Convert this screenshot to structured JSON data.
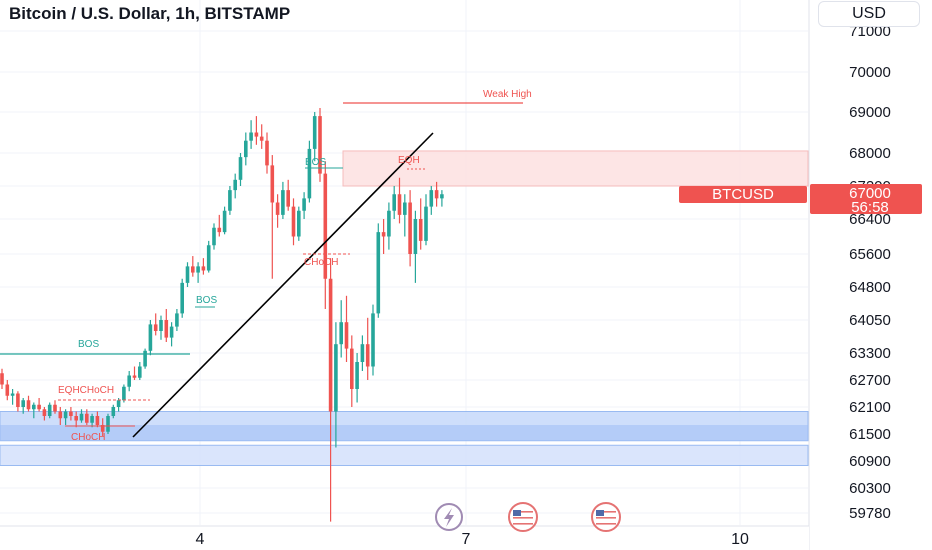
{
  "title": "Bitcoin / U.S. Dollar, 1h, BITSTAMP",
  "currency_button": "USD",
  "price_label": {
    "symbol": "BTCUSD",
    "price": "67000",
    "countdown": "56:58"
  },
  "colors": {
    "up": "#26a69a",
    "down": "#ef5350",
    "supply_zone": "#f9caca",
    "demand_zone": "#b8cff8",
    "annotation": "#ef5350",
    "bos": "#26a69a"
  },
  "icons": [
    "lightning-icon",
    "us-flag-icon",
    "us-flag-icon"
  ],
  "chart_data": {
    "type": "candlestick",
    "y_ticks": [
      "71000",
      "70000",
      "69000",
      "68000",
      "67200",
      "66400",
      "65600",
      "64800",
      "64050",
      "63300",
      "62700",
      "62100",
      "61500",
      "60900",
      "60300",
      "59780"
    ],
    "x_ticks": [
      "4",
      "7",
      "10"
    ],
    "ylim": [
      59600,
      71300
    ],
    "annotations": [
      {
        "text": "Weak High"
      },
      {
        "text": "EQH"
      },
      {
        "text": "BOS"
      },
      {
        "text": "BOS"
      },
      {
        "text": "BOS"
      },
      {
        "text": "CHoCH"
      },
      {
        "text": "EQHCHoCH"
      },
      {
        "text": "CHoCH"
      }
    ],
    "zones": [
      {
        "name": "supply",
        "from": 67200,
        "to": 68050
      },
      {
        "name": "demand-1",
        "from": 61350,
        "to": 62000
      },
      {
        "name": "demand-2",
        "from": 60800,
        "to": 61250
      }
    ],
    "candles": [
      [
        0,
        62850,
        62950,
        62500,
        62600
      ],
      [
        1,
        62600,
        62700,
        62250,
        62350
      ],
      [
        2,
        62350,
        62500,
        62150,
        62400
      ],
      [
        3,
        62400,
        62450,
        62000,
        62100
      ],
      [
        4,
        62100,
        62300,
        61950,
        62250
      ],
      [
        5,
        62250,
        62350,
        62000,
        62050
      ],
      [
        6,
        62050,
        62200,
        61850,
        62150
      ],
      [
        7,
        62150,
        62300,
        62000,
        62050
      ],
      [
        8,
        62050,
        62100,
        61800,
        61900
      ],
      [
        9,
        61900,
        62200,
        61850,
        62150
      ],
      [
        10,
        62150,
        62250,
        61950,
        62000
      ],
      [
        11,
        62000,
        62100,
        61700,
        61850
      ],
      [
        12,
        61850,
        62050,
        61700,
        62000
      ],
      [
        13,
        62000,
        62100,
        61800,
        61900
      ],
      [
        14,
        61900,
        62000,
        61650,
        61800
      ],
      [
        15,
        61800,
        62050,
        61750,
        61950
      ],
      [
        16,
        61950,
        62050,
        61700,
        61750
      ],
      [
        17,
        61750,
        61950,
        61650,
        61900
      ],
      [
        18,
        61900,
        62000,
        61650,
        61700
      ],
      [
        19,
        61700,
        61850,
        61450,
        61550
      ],
      [
        20,
        61550,
        61950,
        61500,
        61900
      ],
      [
        21,
        61900,
        62150,
        61850,
        62100
      ],
      [
        22,
        62100,
        62300,
        62000,
        62250
      ],
      [
        23,
        62250,
        62600,
        62200,
        62550
      ],
      [
        24,
        62550,
        62900,
        62450,
        62800
      ],
      [
        25,
        62800,
        63000,
        62700,
        62750
      ],
      [
        26,
        62750,
        63100,
        62700,
        63000
      ],
      [
        27,
        63000,
        63400,
        62950,
        63350
      ],
      [
        28,
        63350,
        64050,
        63250,
        63950
      ],
      [
        29,
        63950,
        64200,
        63700,
        63800
      ],
      [
        30,
        63800,
        64150,
        63600,
        64050
      ],
      [
        31,
        64050,
        64300,
        63550,
        63650
      ],
      [
        32,
        63650,
        64000,
        63450,
        63900
      ],
      [
        33,
        63900,
        64300,
        63800,
        64200
      ],
      [
        34,
        64200,
        65000,
        64100,
        64900
      ],
      [
        35,
        64900,
        65400,
        64800,
        65300
      ],
      [
        36,
        65300,
        65550,
        65050,
        65150
      ],
      [
        37,
        65150,
        65400,
        64900,
        65300
      ],
      [
        38,
        65300,
        65500,
        65100,
        65200
      ],
      [
        39,
        65200,
        65900,
        65150,
        65800
      ],
      [
        40,
        65800,
        66300,
        65700,
        66200
      ],
      [
        41,
        66200,
        66500,
        66000,
        66100
      ],
      [
        42,
        66100,
        66700,
        66050,
        66600
      ],
      [
        43,
        66600,
        67200,
        66500,
        67100
      ],
      [
        44,
        67100,
        67500,
        66900,
        67350
      ],
      [
        45,
        67350,
        68000,
        67200,
        67900
      ],
      [
        46,
        67900,
        68500,
        67700,
        68300
      ],
      [
        47,
        68300,
        68800,
        68100,
        68500
      ],
      [
        48,
        68500,
        68900,
        68200,
        68400
      ],
      [
        49,
        68400,
        68700,
        68100,
        68300
      ],
      [
        50,
        68300,
        68500,
        67500,
        67700
      ],
      [
        51,
        67700,
        67950,
        65000,
        66800
      ],
      [
        52,
        66800,
        67000,
        66200,
        66500
      ],
      [
        53,
        66500,
        67300,
        66400,
        67100
      ],
      [
        54,
        67100,
        67350,
        66600,
        66700
      ],
      [
        55,
        66700,
        66900,
        65800,
        66000
      ],
      [
        56,
        66000,
        66700,
        65900,
        66600
      ],
      [
        57,
        66600,
        67050,
        66400,
        66900
      ],
      [
        58,
        66900,
        68300,
        66800,
        68100
      ],
      [
        59,
        68100,
        69000,
        67800,
        68900
      ],
      [
        60,
        68900,
        69100,
        67300,
        67500
      ],
      [
        61,
        67500,
        67800,
        64300,
        65000
      ],
      [
        62,
        65000,
        65500,
        59600,
        62000
      ],
      [
        63,
        62000,
        64000,
        61200,
        63500
      ],
      [
        64,
        63500,
        64500,
        63200,
        64000
      ],
      [
        65,
        64000,
        64600,
        63100,
        63400
      ],
      [
        66,
        63400,
        63700,
        62100,
        62500
      ],
      [
        67,
        62500,
        63300,
        62200,
        63100
      ],
      [
        68,
        63100,
        63700,
        62900,
        63500
      ],
      [
        69,
        63500,
        64100,
        62700,
        63000
      ],
      [
        70,
        63000,
        64400,
        62800,
        64200
      ],
      [
        71,
        64200,
        66300,
        64100,
        66100
      ],
      [
        72,
        66100,
        66400,
        65600,
        66000
      ],
      [
        73,
        66000,
        66800,
        65700,
        66600
      ],
      [
        74,
        66600,
        67200,
        66400,
        67000
      ],
      [
        75,
        67000,
        67400,
        66300,
        66500
      ],
      [
        76,
        66500,
        67000,
        66000,
        66800
      ],
      [
        77,
        66800,
        67100,
        65300,
        65600
      ],
      [
        78,
        65600,
        66600,
        64900,
        66400
      ],
      [
        79,
        66400,
        66900,
        65700,
        65900
      ],
      [
        80,
        65900,
        67000,
        65800,
        66700
      ],
      [
        81,
        66700,
        67200,
        66500,
        67100
      ],
      [
        82,
        67100,
        67300,
        66700,
        66900
      ],
      [
        83,
        66900,
        67100,
        66700,
        67000
      ]
    ]
  }
}
